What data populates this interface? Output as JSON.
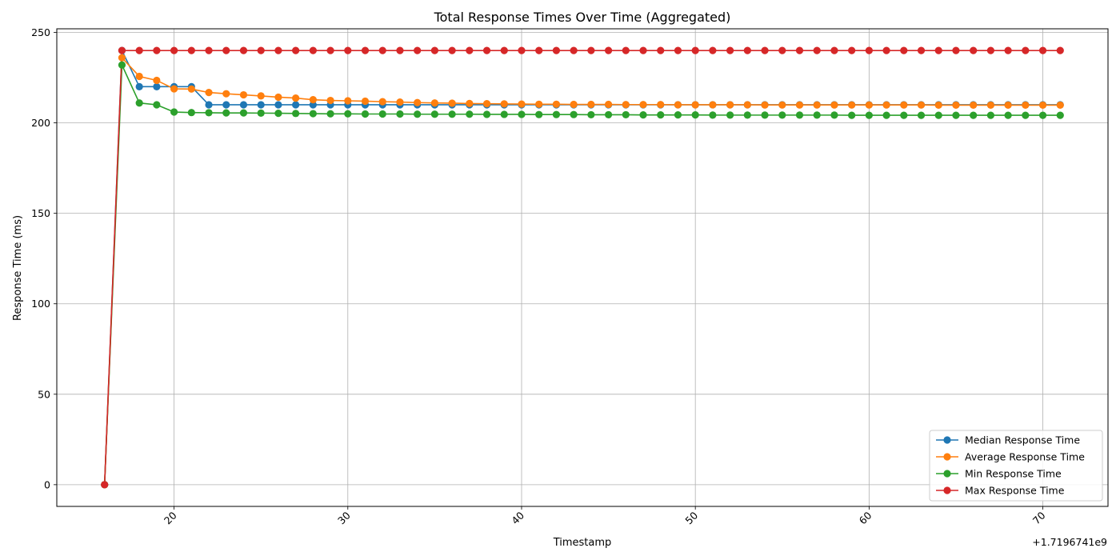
{
  "chart_data": {
    "type": "line",
    "title": "Total Response Times Over Time (Aggregated)",
    "xlabel": "Timestamp",
    "ylabel": "Response Time (ms)",
    "x_offset_label": "+1.7196741e9",
    "xlim": [
      13.25,
      73.75
    ],
    "ylim": [
      -12,
      252
    ],
    "x_ticks": [
      20,
      30,
      40,
      50,
      60,
      70
    ],
    "y_ticks": [
      0,
      50,
      100,
      150,
      200,
      250
    ],
    "grid": true,
    "legend_position": "lower-right",
    "x": [
      16,
      17,
      18,
      19,
      20,
      21,
      22,
      23,
      24,
      25,
      26,
      27,
      28,
      29,
      30,
      31,
      32,
      33,
      34,
      35,
      36,
      37,
      38,
      39,
      40,
      41,
      42,
      43,
      44,
      45,
      46,
      47,
      48,
      49,
      50,
      51,
      52,
      53,
      54,
      55,
      56,
      57,
      58,
      59,
      60,
      61,
      62,
      63,
      64,
      65,
      66,
      67,
      68,
      69,
      70,
      71
    ],
    "series": [
      {
        "name": "Median Response Time",
        "color": "#1f77b4",
        "values": [
          0,
          240,
          220,
          220,
          220,
          220,
          210,
          210,
          210,
          210,
          210,
          210,
          210,
          210,
          210,
          210,
          210,
          210,
          210,
          210,
          210,
          210,
          210,
          210,
          210,
          210,
          210,
          210,
          210,
          210,
          210,
          210,
          210,
          210,
          210,
          210,
          210,
          210,
          210,
          210,
          210,
          210,
          210,
          210,
          210,
          210,
          210,
          210,
          210,
          210,
          210,
          210,
          210,
          210,
          210,
          210
        ]
      },
      {
        "name": "Average Response Time",
        "color": "#ff7f0e",
        "values": [
          0,
          236,
          225.7,
          223.5,
          218.8,
          218.7,
          216.8,
          216.1,
          215.5,
          214.9,
          214.2,
          213.7,
          212.8,
          212.4,
          212.2,
          212.0,
          211.7,
          211.5,
          211.2,
          211.0,
          210.9,
          210.7,
          210.6,
          210.5,
          210.4,
          210.3,
          210.3,
          210.2,
          210.2,
          210.2,
          210.1,
          210.1,
          210.1,
          210.0,
          210.0,
          210.0,
          210.0,
          210.0,
          209.9,
          209.9,
          209.9,
          209.9,
          209.9,
          209.9,
          209.9,
          209.9,
          209.9,
          209.9,
          209.8,
          209.8,
          209.8,
          209.8,
          209.8,
          209.8,
          209.8,
          209.8
        ]
      },
      {
        "name": "Min Response Time",
        "color": "#2ca02c",
        "values": [
          0,
          232,
          211,
          210,
          206,
          205.7,
          205.6,
          205.5,
          205.5,
          205.4,
          205.3,
          205.2,
          205.1,
          205.0,
          205.0,
          204.9,
          204.9,
          204.9,
          204.8,
          204.8,
          204.8,
          204.8,
          204.7,
          204.7,
          204.7,
          204.6,
          204.6,
          204.6,
          204.5,
          204.5,
          204.5,
          204.4,
          204.4,
          204.4,
          204.4,
          204.3,
          204.3,
          204.3,
          204.3,
          204.3,
          204.3,
          204.3,
          204.3,
          204.2,
          204.2,
          204.2,
          204.2,
          204.2,
          204.2,
          204.2,
          204.2,
          204.2,
          204.2,
          204.2,
          204.2,
          204.2
        ]
      },
      {
        "name": "Max Response Time",
        "color": "#d62728",
        "values": [
          0,
          240,
          240,
          240,
          240,
          240,
          240,
          240,
          240,
          240,
          240,
          240,
          240,
          240,
          240,
          240,
          240,
          240,
          240,
          240,
          240,
          240,
          240,
          240,
          240,
          240,
          240,
          240,
          240,
          240,
          240,
          240,
          240,
          240,
          240,
          240,
          240,
          240,
          240,
          240,
          240,
          240,
          240,
          240,
          240,
          240,
          240,
          240,
          240,
          240,
          240,
          240,
          240,
          240,
          240,
          240
        ]
      }
    ]
  }
}
